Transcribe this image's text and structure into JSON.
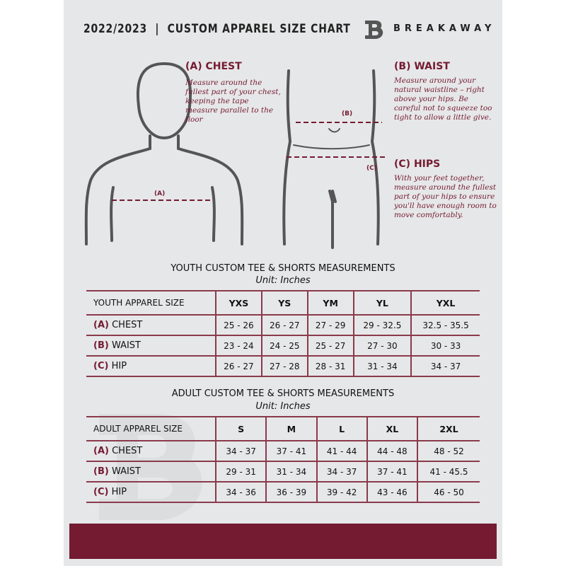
{
  "header": {
    "title": "2022/2023  |  CUSTOM APPAREL SIZE CHART",
    "brand": "BREAKAWAY",
    "logo_letter": "B"
  },
  "measures": {
    "chest": {
      "heading": "(A) CHEST",
      "marker": "(A)",
      "text": "Measure around the fullest part of your chest, keeping the tape measure parallel to the floor"
    },
    "waist": {
      "heading": "(B) WAIST",
      "marker": "(B)",
      "text": "Measure around your natural waistline – right above your hips. Be careful not to squeeze too tight to allow a little give."
    },
    "hips": {
      "heading": "(C) HIPS",
      "marker": "(C)",
      "text": "With your feet together, measure around the fullest part of your hips to ensure you'll have enough room to move comfortably."
    }
  },
  "youth": {
    "title": "YOUTH CUSTOM TEE & SHORTS MEASUREMENTS",
    "unit": "Unit: Inches",
    "size_label": "YOUTH APPAREL SIZE",
    "sizes": [
      "YXS",
      "YS",
      "YM",
      "YL",
      "YXL"
    ],
    "rows": [
      {
        "letter": "(A)",
        "name": "CHEST",
        "values": [
          "25 - 26",
          "26 - 27",
          "27 - 29",
          "29 - 32.5",
          "32.5 - 35.5"
        ]
      },
      {
        "letter": "(B)",
        "name": "WAIST",
        "values": [
          "23 - 24",
          "24 - 25",
          "25 - 27",
          "27 - 30",
          "30 - 33"
        ]
      },
      {
        "letter": "(C)",
        "name": "HIP",
        "values": [
          "26 - 27",
          "27 - 28",
          "28 - 31",
          "31 - 34",
          "34 - 37"
        ]
      }
    ]
  },
  "adult": {
    "title": "ADULT CUSTOM TEE & SHORTS MEASUREMENTS",
    "unit": "Unit: Inches",
    "size_label": "ADULT APPAREL SIZE",
    "sizes": [
      "S",
      "M",
      "L",
      "XL",
      "2XL"
    ],
    "rows": [
      {
        "letter": "(A)",
        "name": "CHEST",
        "values": [
          "34 - 37",
          "37 - 41",
          "41 - 44",
          "44 - 48",
          "48 - 52"
        ]
      },
      {
        "letter": "(B)",
        "name": "WAIST",
        "values": [
          "29 - 31",
          "31 - 34",
          "34 - 37",
          "37 - 41",
          "41 - 45.5"
        ]
      },
      {
        "letter": "(C)",
        "name": "HIP",
        "values": [
          "34 - 36",
          "36 - 39",
          "39 - 42",
          "43 - 46",
          "46 - 50"
        ]
      }
    ]
  },
  "colors": {
    "accent": "#741b32",
    "background": "#e6e7e8"
  }
}
